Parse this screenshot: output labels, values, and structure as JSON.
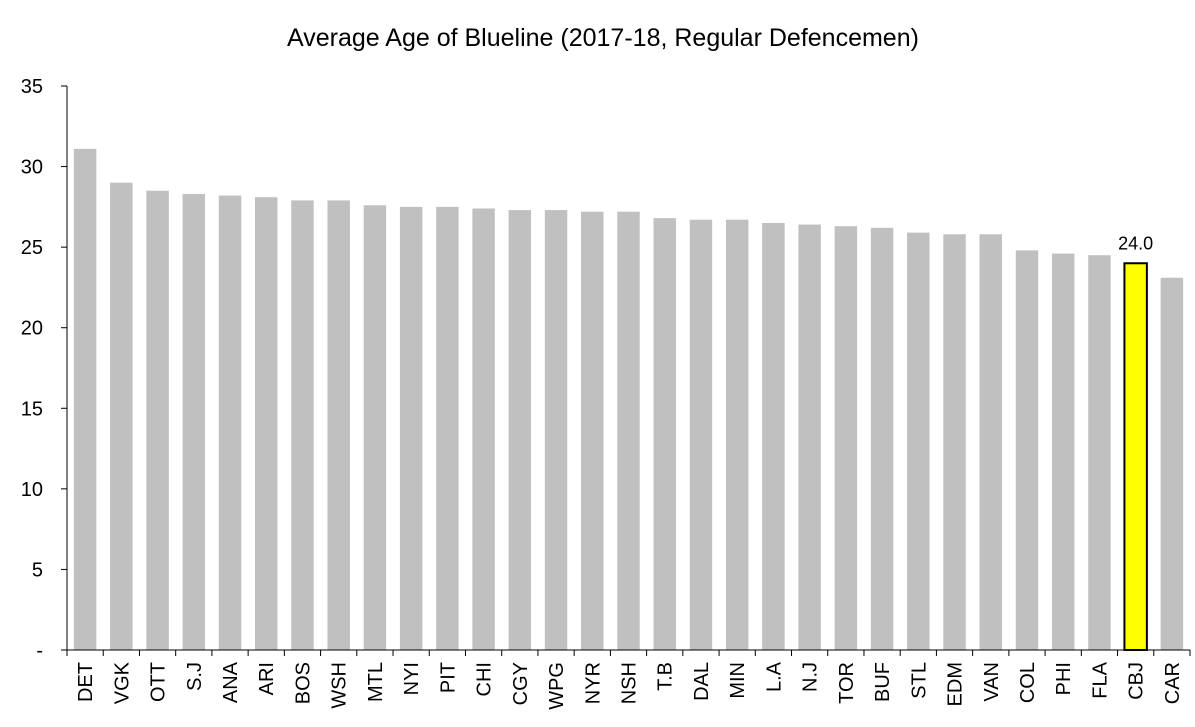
{
  "chart_data": {
    "type": "bar",
    "title": "Average Age of Blueline (2017-18, Regular Defencemen)",
    "xlabel": "",
    "ylabel": "",
    "ylim": [
      0,
      35
    ],
    "y_ticks": [
      {
        "value": 0,
        "label": "-"
      },
      {
        "value": 5,
        "label": "5"
      },
      {
        "value": 10,
        "label": "10"
      },
      {
        "value": 15,
        "label": "15"
      },
      {
        "value": 20,
        "label": "20"
      },
      {
        "value": 25,
        "label": "25"
      },
      {
        "value": 30,
        "label": "30"
      },
      {
        "value": 35,
        "label": "35"
      }
    ],
    "grid": false,
    "legend": "none",
    "categories": [
      "DET",
      "VGK",
      "OTT",
      "S.J",
      "ANA",
      "ARI",
      "BOS",
      "WSH",
      "MTL",
      "NYI",
      "PIT",
      "CHI",
      "CGY",
      "WPG",
      "NYR",
      "NSH",
      "T.B",
      "DAL",
      "MIN",
      "L.A",
      "N.J",
      "TOR",
      "BUF",
      "STL",
      "EDM",
      "VAN",
      "COL",
      "PHI",
      "FLA",
      "CBJ",
      "CAR"
    ],
    "values": [
      31.1,
      29.0,
      28.5,
      28.3,
      28.2,
      28.1,
      27.9,
      27.9,
      27.6,
      27.5,
      27.5,
      27.4,
      27.3,
      27.3,
      27.2,
      27.2,
      26.8,
      26.7,
      26.7,
      26.5,
      26.4,
      26.3,
      26.2,
      25.9,
      25.8,
      25.8,
      24.8,
      24.6,
      24.5,
      24.0,
      23.1
    ],
    "highlight": {
      "category": "CBJ",
      "label": "24.0"
    },
    "colors": {
      "bar": "#c0c0c0",
      "highlight": "#ffff00",
      "highlight_border": "#000000"
    }
  }
}
